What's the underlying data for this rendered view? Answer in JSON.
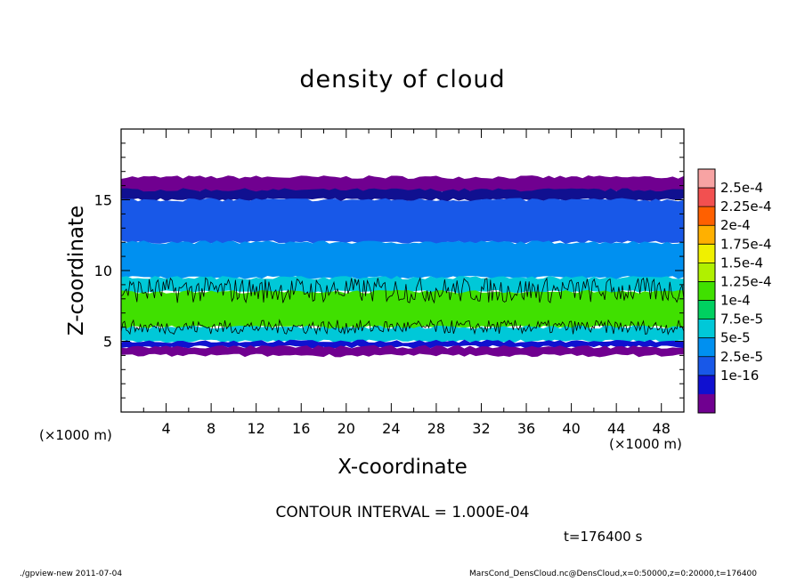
{
  "chart_data": {
    "type": "heatmap",
    "title": "density of cloud",
    "xlabel": "X-coordinate",
    "ylabel": "Z-coordinate",
    "x_unit": "(×1000 m)",
    "xlim": [
      0,
      50
    ],
    "ylim": [
      0,
      20
    ],
    "x_ticks": [
      "4",
      "8",
      "12",
      "16",
      "20",
      "24",
      "28",
      "32",
      "36",
      "40",
      "44",
      "48"
    ],
    "y_ticks": [
      "5",
      "10",
      "15"
    ],
    "colorbar": {
      "labels": [
        "2.5e-4",
        "2.25e-4",
        "2e-4",
        "1.75e-4",
        "1.5e-4",
        "1.25e-4",
        "1e-4",
        "7.5e-5",
        "5e-5",
        "2.5e-5",
        "1e-16"
      ],
      "colors": [
        "#f7a3a3",
        "#f25050",
        "#ff6000",
        "#ffb000",
        "#f0f000",
        "#b0f000",
        "#40e000",
        "#00d060",
        "#00c8d8",
        "#0090f0",
        "#1858e8",
        "#1010d0",
        "#700090"
      ]
    },
    "layers": [
      {
        "z_range": [
          15.5,
          16.6
        ],
        "level": "1e-16",
        "color": "#700090"
      },
      {
        "z_range": [
          15.0,
          15.7
        ],
        "level": "2.5e-5",
        "color": "#101090"
      },
      {
        "z_range": [
          12.0,
          15.0
        ],
        "level": "5e-5",
        "color": "#1858e8"
      },
      {
        "z_range": [
          9.5,
          12.0
        ],
        "level": "7.5e-5",
        "color": "#0090f0"
      },
      {
        "z_range": [
          8.5,
          9.5
        ],
        "level": "1e-4",
        "color": "#00c8d8"
      },
      {
        "z_range": [
          6.0,
          8.5
        ],
        "level": "1.25e-4",
        "color": "#40e000"
      },
      {
        "z_range": [
          5.0,
          6.0
        ],
        "level": "7.5e-5",
        "color": "#00c8d8"
      },
      {
        "z_range": [
          4.6,
          5.0
        ],
        "level": "2.5e-5",
        "color": "#1010d0"
      },
      {
        "z_range": [
          4.0,
          4.6
        ],
        "level": "1e-16",
        "color": "#700090"
      }
    ],
    "contour_levels": [
      0.0001
    ],
    "contour_interval": "CONTOUR INTERVAL = 1.000E-04",
    "time": "t=176400 s"
  },
  "footer": {
    "left": "./gpview-new  2011-07-04",
    "right": "MarsCond_DensCloud.nc@DensCloud,x=0:50000,z=0:20000,t=176400"
  }
}
